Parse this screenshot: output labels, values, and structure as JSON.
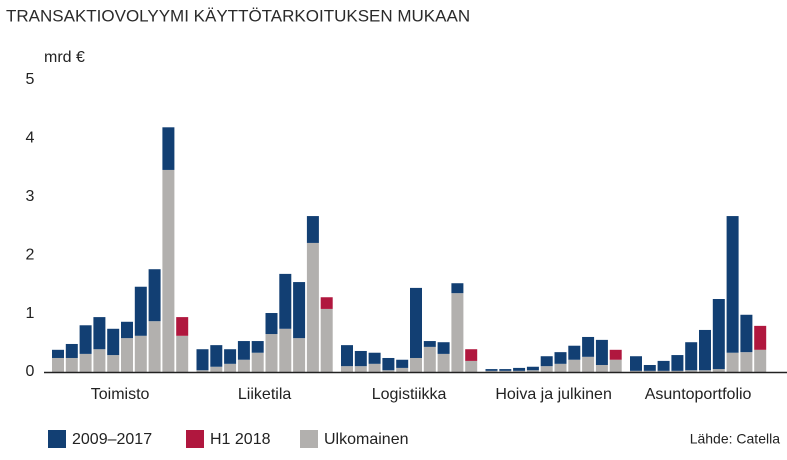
{
  "chart_data": {
    "type": "stacked-bar",
    "title": "TRANSAKTIOVOLYYMI KÄYTTÖTARKOITUKSEN MUKAAN",
    "y_axis_label": "mrd €",
    "source": "Lähde: Catella",
    "groups": [
      "Toimisto",
      "Liiketila",
      "Logistiikka",
      "Hoiva ja julkinen",
      "Asuntoportfolio"
    ],
    "ylim": [
      0,
      5
    ],
    "yticks": [
      0,
      1,
      2,
      3,
      4,
      5
    ],
    "series": [
      {
        "name": "Ulkomainen",
        "color": "#b2b0ae",
        "values": [
          0.24,
          0.24,
          0.31,
          0.39,
          0.29,
          0.58,
          0.62,
          0.87,
          3.46,
          0.62,
          0.03,
          0.09,
          0.14,
          0.21,
          0.33,
          0.65,
          0.74,
          0.58,
          2.21,
          1.08,
          0.1,
          0.1,
          0.14,
          0.03,
          0.07,
          0.24,
          0.43,
          0.31,
          1.35,
          0.19,
          0.02,
          0.02,
          0.02,
          0.03,
          0.1,
          0.14,
          0.21,
          0.26,
          0.12,
          0.21,
          0.02,
          0.02,
          0.02,
          0.02,
          0.03,
          0.03,
          0.05,
          0.33,
          0.34,
          0.38
        ]
      },
      {
        "name": "2009–2017",
        "color": "#123f73",
        "values": [
          0.14,
          0.24,
          0.49,
          0.55,
          0.45,
          0.28,
          0.84,
          0.89,
          0.73,
          null,
          0.36,
          0.37,
          0.25,
          0.32,
          0.2,
          0.36,
          0.94,
          0.96,
          0.46,
          null,
          0.36,
          0.26,
          0.19,
          0.21,
          0.14,
          1.2,
          0.1,
          0.2,
          0.17,
          null,
          0.03,
          0.03,
          0.05,
          0.06,
          0.17,
          0.2,
          0.24,
          0.34,
          0.43,
          null,
          0.25,
          0.1,
          0.17,
          0.27,
          0.48,
          0.69,
          1.2,
          2.34,
          0.64,
          null
        ]
      },
      {
        "name": "H1 2018",
        "color": "#b0173e",
        "values": [
          null,
          null,
          null,
          null,
          null,
          null,
          null,
          null,
          null,
          0.32,
          null,
          null,
          null,
          null,
          null,
          null,
          null,
          null,
          null,
          0.2,
          null,
          null,
          null,
          null,
          null,
          null,
          null,
          null,
          null,
          0.2,
          null,
          null,
          null,
          null,
          null,
          null,
          null,
          null,
          null,
          0.17,
          null,
          null,
          null,
          null,
          null,
          null,
          null,
          null,
          null,
          0.41
        ]
      }
    ]
  }
}
